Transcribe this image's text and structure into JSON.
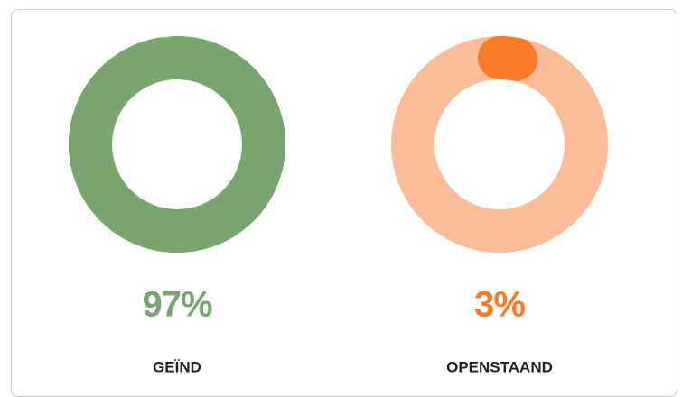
{
  "chart_data": [
    {
      "type": "donut",
      "values": [
        97
      ],
      "value_labels": [
        "97%"
      ],
      "categories": [
        "GEÏND"
      ],
      "color": "#78a56f",
      "track_color": "#7fd94f"
    },
    {
      "type": "donut",
      "values": [
        3
      ],
      "value_labels": [
        "3%"
      ],
      "categories": [
        "OPENSTAAND"
      ],
      "color": "#f97b2a",
      "track_color": "#fdbb98"
    }
  ]
}
